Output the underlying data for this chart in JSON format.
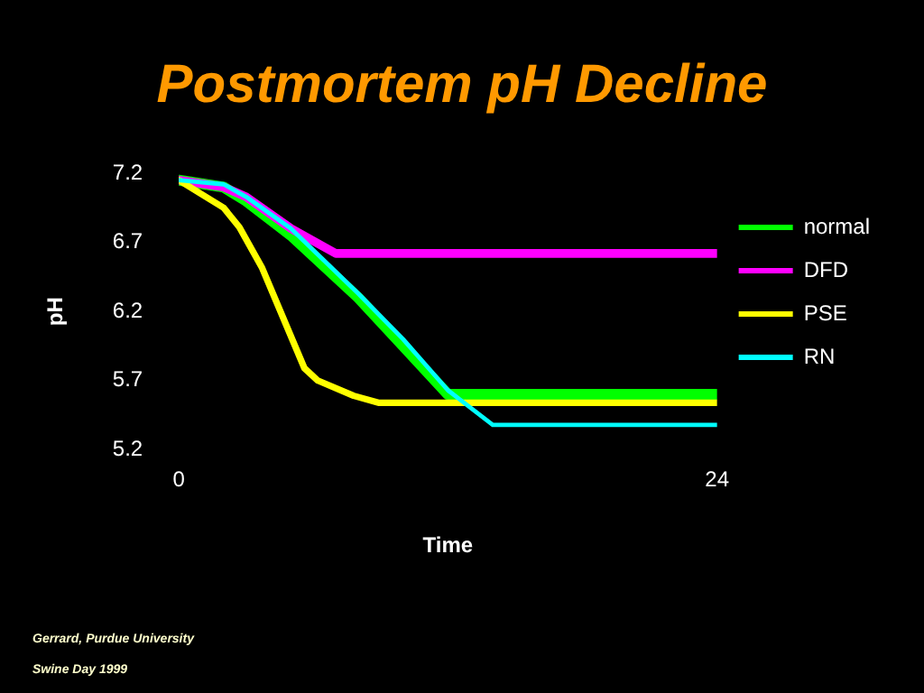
{
  "chart_data": {
    "type": "line",
    "title": "Postmortem pH Decline",
    "xlabel": "Time",
    "ylabel": "pH",
    "annotations": [
      "Gerrard, Purdue University",
      "Swine Day 1999"
    ],
    "series": [
      {
        "name": "normal",
        "color": "#00ff00",
        "x": [
          0,
          2,
          3,
          5,
          8,
          10,
          12,
          24
        ],
        "values": [
          7.15,
          7.1,
          7.0,
          6.75,
          6.3,
          5.95,
          5.6,
          5.6
        ]
      },
      {
        "name": "DFD",
        "color": "#ff00ff",
        "x": [
          0,
          2,
          3,
          5,
          7,
          24
        ],
        "values": [
          7.15,
          7.1,
          7.03,
          6.8,
          6.62,
          6.62
        ]
      },
      {
        "name": "PSE",
        "color": "#ffff00",
        "x": [
          0,
          1,
          2,
          2.7,
          3.7,
          5.6,
          6.2,
          7.8,
          8.9,
          24
        ],
        "values": [
          7.15,
          7.05,
          6.95,
          6.81,
          6.52,
          5.79,
          5.7,
          5.59,
          5.54,
          5.54
        ]
      },
      {
        "name": "RN",
        "color": "#00ffff",
        "x": [
          0,
          2,
          3,
          5,
          8,
          10,
          12,
          14,
          24
        ],
        "values": [
          7.15,
          7.12,
          7.03,
          6.8,
          6.33,
          6.0,
          5.63,
          5.38,
          5.38
        ]
      }
    ],
    "xlim": [
      0,
      24
    ],
    "xticks": [
      0,
      24
    ],
    "ylim": [
      5.2,
      7.2
    ],
    "yticks": [
      5.2,
      5.7,
      6.2,
      6.7,
      7.2
    ],
    "grid": false,
    "legend": "right",
    "marker": "none",
    "line_style": "solid"
  }
}
